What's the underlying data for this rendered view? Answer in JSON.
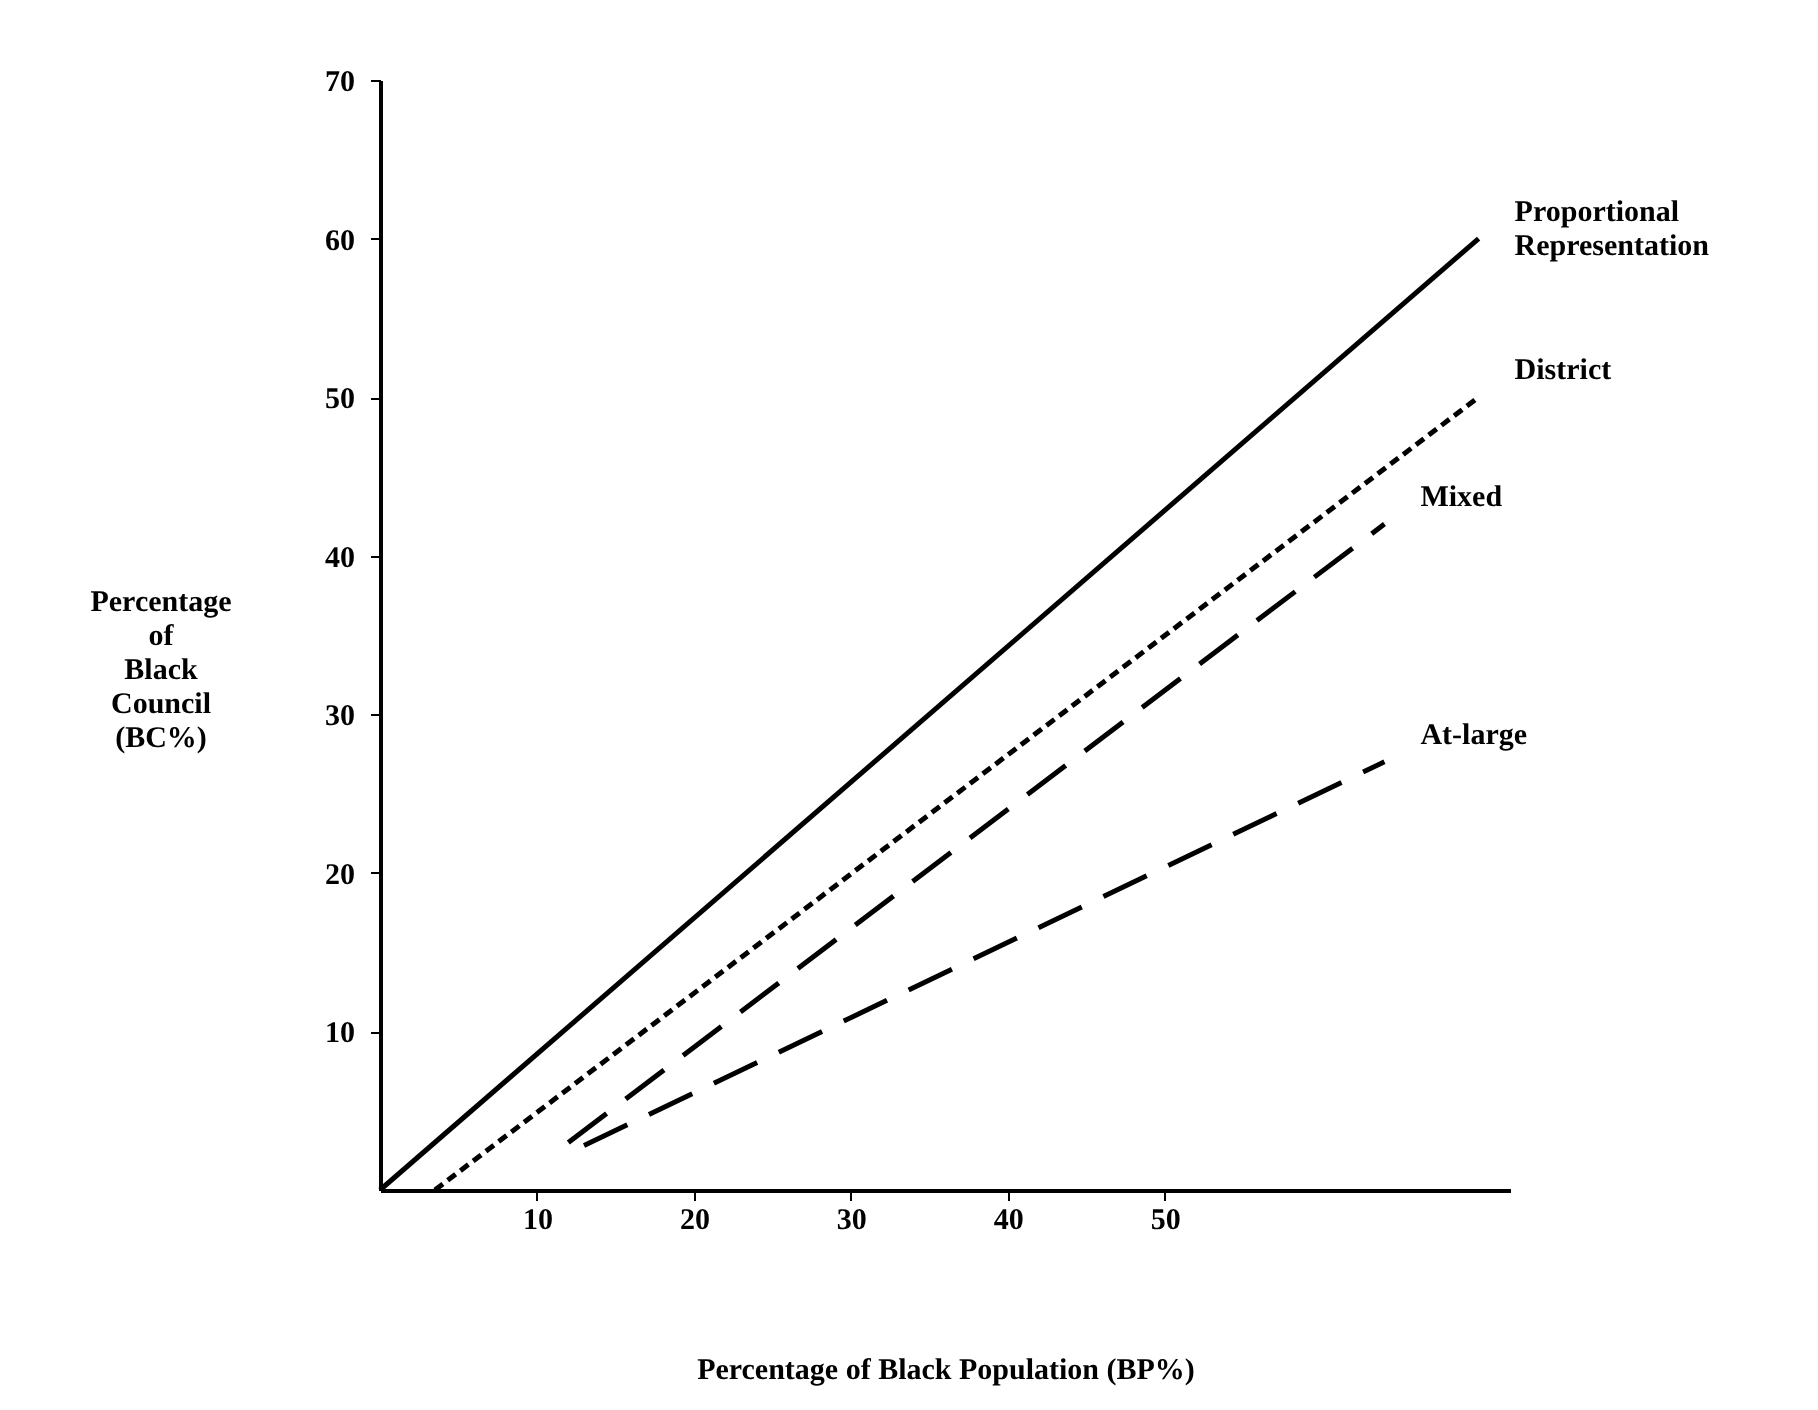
{
  "chart_data": {
    "type": "line",
    "xlabel": "Percentage of Black Population (BP%)",
    "ylabel": "Percentage\nof\nBlack\nCouncil\n(BC%)",
    "xlim": [
      0,
      72
    ],
    "ylim": [
      0,
      70
    ],
    "xticks": [
      10,
      20,
      30,
      40,
      50
    ],
    "yticks": [
      10,
      20,
      30,
      40,
      50,
      60,
      70
    ],
    "grid": false,
    "marker": "none",
    "series": [
      {
        "name": "Proportional\nRepresentation",
        "color": "#000000",
        "line_style": "solid",
        "x": [
          0,
          70
        ],
        "values": [
          0,
          60
        ]
      },
      {
        "name": "District",
        "color": "#000000",
        "line_style": "dotted",
        "x": [
          3.5,
          70
        ],
        "values": [
          0,
          50
        ]
      },
      {
        "name": "Mixed",
        "color": "#000000",
        "line_style": "dashed",
        "x": [
          12,
          64
        ],
        "values": [
          3,
          42
        ]
      },
      {
        "name": "At-large",
        "color": "#000000",
        "line_style": "dashed",
        "x": [
          13,
          64
        ],
        "values": [
          2.8,
          27
        ]
      }
    ]
  }
}
